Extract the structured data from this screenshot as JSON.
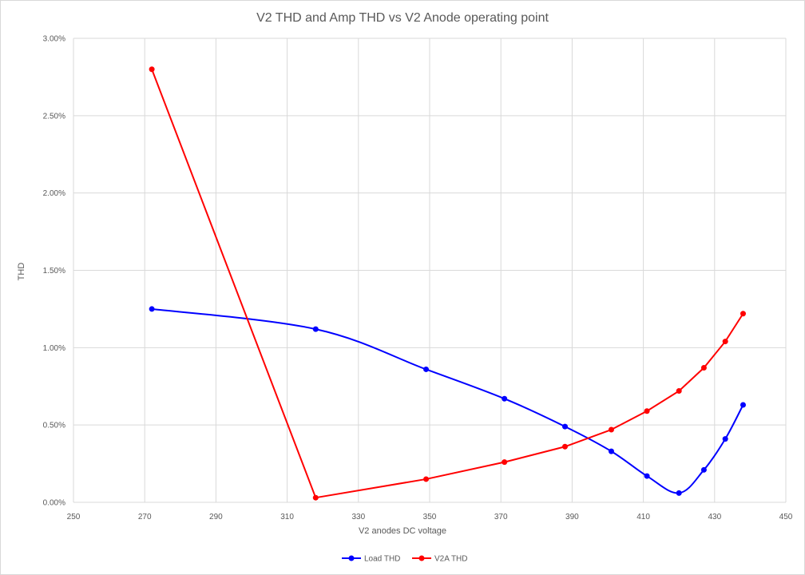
{
  "chart_data": {
    "type": "line",
    "title": "V2 THD and Amp THD vs V2 Anode operating point",
    "xlabel": "V2 anodes DC voltage",
    "ylabel": "THD",
    "xlim": [
      250,
      450
    ],
    "ylim": [
      0,
      0.03
    ],
    "x_ticks": [
      "250",
      "270",
      "290",
      "310",
      "330",
      "350",
      "370",
      "390",
      "410",
      "430",
      "450"
    ],
    "y_ticks": [
      "0.00%",
      "0.50%",
      "1.00%",
      "1.50%",
      "2.00%",
      "2.50%",
      "3.00%"
    ],
    "grid": "on",
    "legend_position": "bottom",
    "series": [
      {
        "name": "Load THD",
        "color": "#0000ff",
        "smooth": true,
        "x": [
          272,
          318,
          349,
          371,
          388,
          401,
          411,
          420,
          427,
          433,
          438
        ],
        "y": [
          0.0125,
          0.0112,
          0.0086,
          0.0067,
          0.0049,
          0.0033,
          0.0017,
          0.0006,
          0.0021,
          0.0041,
          0.0063
        ]
      },
      {
        "name": "V2A THD",
        "color": "#ff0000",
        "smooth": false,
        "x": [
          272,
          318,
          349,
          371,
          388,
          401,
          411,
          420,
          427,
          433,
          438
        ],
        "y": [
          0.028,
          0.0003,
          0.0015,
          0.0026,
          0.0036,
          0.0047,
          0.0059,
          0.0072,
          0.0087,
          0.0104,
          0.0122
        ]
      }
    ]
  }
}
